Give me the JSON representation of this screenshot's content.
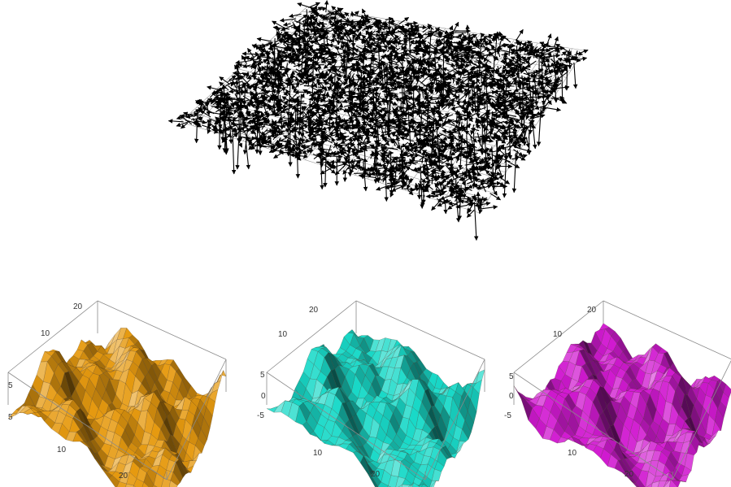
{
  "chart_data": [
    {
      "type": "vector-field-3d",
      "title": "",
      "grid_size": [
        24,
        24
      ],
      "arrow_color": "#000000",
      "grid_color": "#9a9a9a",
      "axes": false
    },
    {
      "type": "surface-3d",
      "title": "",
      "surface_color": "#e69a10",
      "x_ticks": [
        "10",
        "20"
      ],
      "y_ticks": [
        "10",
        "20"
      ],
      "z_ticks": [
        "5",
        "5"
      ],
      "box": true
    },
    {
      "type": "surface-3d",
      "title": "",
      "surface_color": "#19d9c8",
      "x_ticks": [
        "10",
        "20"
      ],
      "y_ticks": [
        "10",
        "20"
      ],
      "z_ticks": [
        "5",
        "0",
        "-5"
      ],
      "zlim": [
        -5,
        5
      ],
      "box": true
    },
    {
      "type": "surface-3d",
      "title": "",
      "surface_color": "#d11ad1",
      "x_ticks": [
        "10",
        "20"
      ],
      "y_ticks": [
        "10",
        "20"
      ],
      "z_ticks": [
        "5",
        "0",
        "-5"
      ],
      "zlim": [
        -5,
        5
      ],
      "box": true
    }
  ]
}
